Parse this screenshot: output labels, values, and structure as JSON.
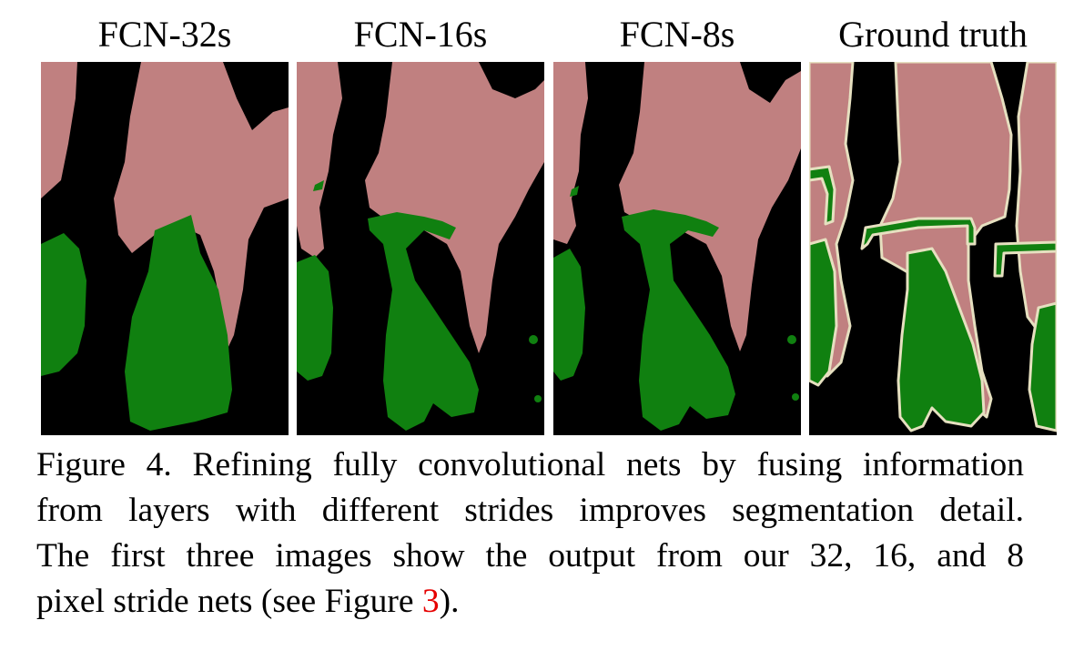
{
  "panels": [
    {
      "title": "FCN-32s"
    },
    {
      "title": "FCN-16s"
    },
    {
      "title": "FCN-8s"
    },
    {
      "title": "Ground truth"
    }
  ],
  "colors": {
    "background": "#000000",
    "person": "#c08080",
    "bicycle": "#108010",
    "void_boundary": "#e6e0c0"
  },
  "caption": {
    "line1": "Figure 4.  Refining fully convolutional nets by fusing information",
    "line2": "from layers with different strides improves segmentation detail.",
    "line3": "The first three images show the output from our 32, 16, and 8",
    "line4_prefix": "pixel stride nets (see Figure ",
    "line4_ref": "3",
    "line4_suffix": ")."
  }
}
